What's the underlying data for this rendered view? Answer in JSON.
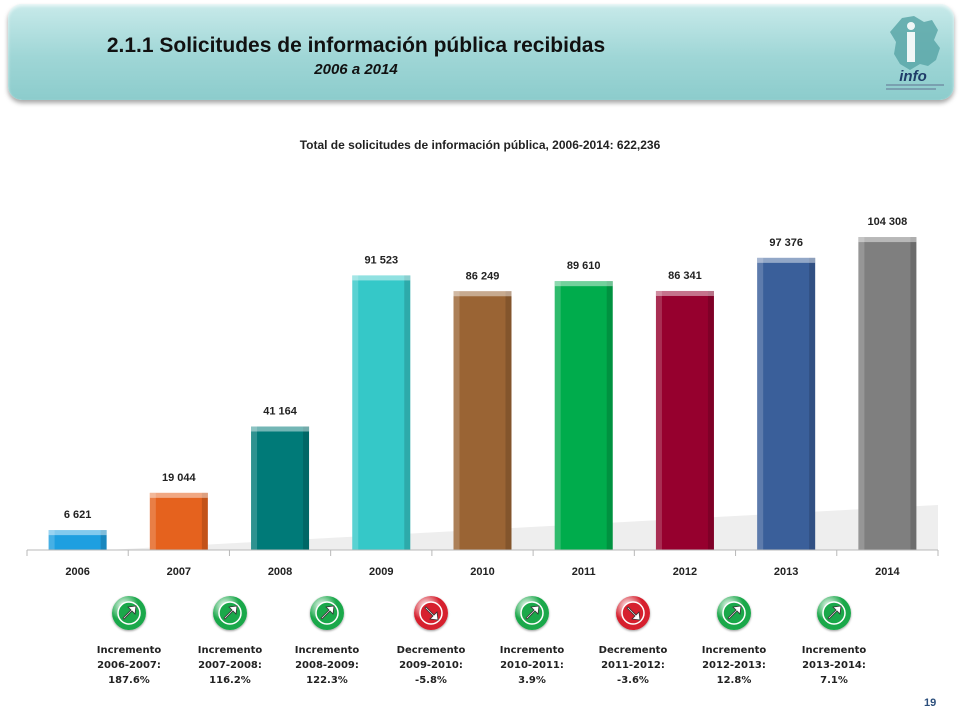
{
  "header": {
    "title": "2.1.1 Solicitudes de información pública recibidas",
    "subtitle": "2006 a 2014",
    "logo_text": "info"
  },
  "page_number": "19",
  "chart_data": {
    "type": "bar",
    "title": "Total de solicitudes de información pública, 2006-2014:  622,236",
    "categories": [
      "2006",
      "2007",
      "2008",
      "2009",
      "2010",
      "2011",
      "2012",
      "2013",
      "2014"
    ],
    "values": [
      6621,
      19044,
      41164,
      91523,
      86249,
      89610,
      86341,
      97376,
      104308
    ],
    "value_labels": [
      "6 621",
      "19 044",
      "41 164",
      "91 523",
      "86 249",
      "89 610",
      "86 341",
      "97 376",
      "104 308"
    ],
    "colors": [
      "#1e9fe0",
      "#e5621e",
      "#007a78",
      "#35c8c8",
      "#9a6434",
      "#00ac4c",
      "#96002e",
      "#3a5f9a",
      "#7f7f7f"
    ],
    "ylim": [
      0,
      110000
    ],
    "grid": false,
    "legend": "none"
  },
  "changes": [
    {
      "direction": "up",
      "text": "Incremento\n2006-2007:\n187.6%"
    },
    {
      "direction": "up",
      "text": "Incremento\n2007-2008:\n116.2%"
    },
    {
      "direction": "up",
      "text": "Incremento\n2008-2009:\n122.3%"
    },
    {
      "direction": "down",
      "text": "Decremento\n2009-2010:\n-5.8%"
    },
    {
      "direction": "up",
      "text": "Incremento\n2010-2011:\n3.9%"
    },
    {
      "direction": "down",
      "text": "Decremento\n2011-2012:\n-3.6%"
    },
    {
      "direction": "up",
      "text": "Incremento\n2012-2013:\n12.8%"
    },
    {
      "direction": "up",
      "text": "Incremento\n2013-2014:\n7.1%"
    }
  ],
  "colors": {
    "up": "#1aa84a",
    "down": "#d6202e"
  }
}
